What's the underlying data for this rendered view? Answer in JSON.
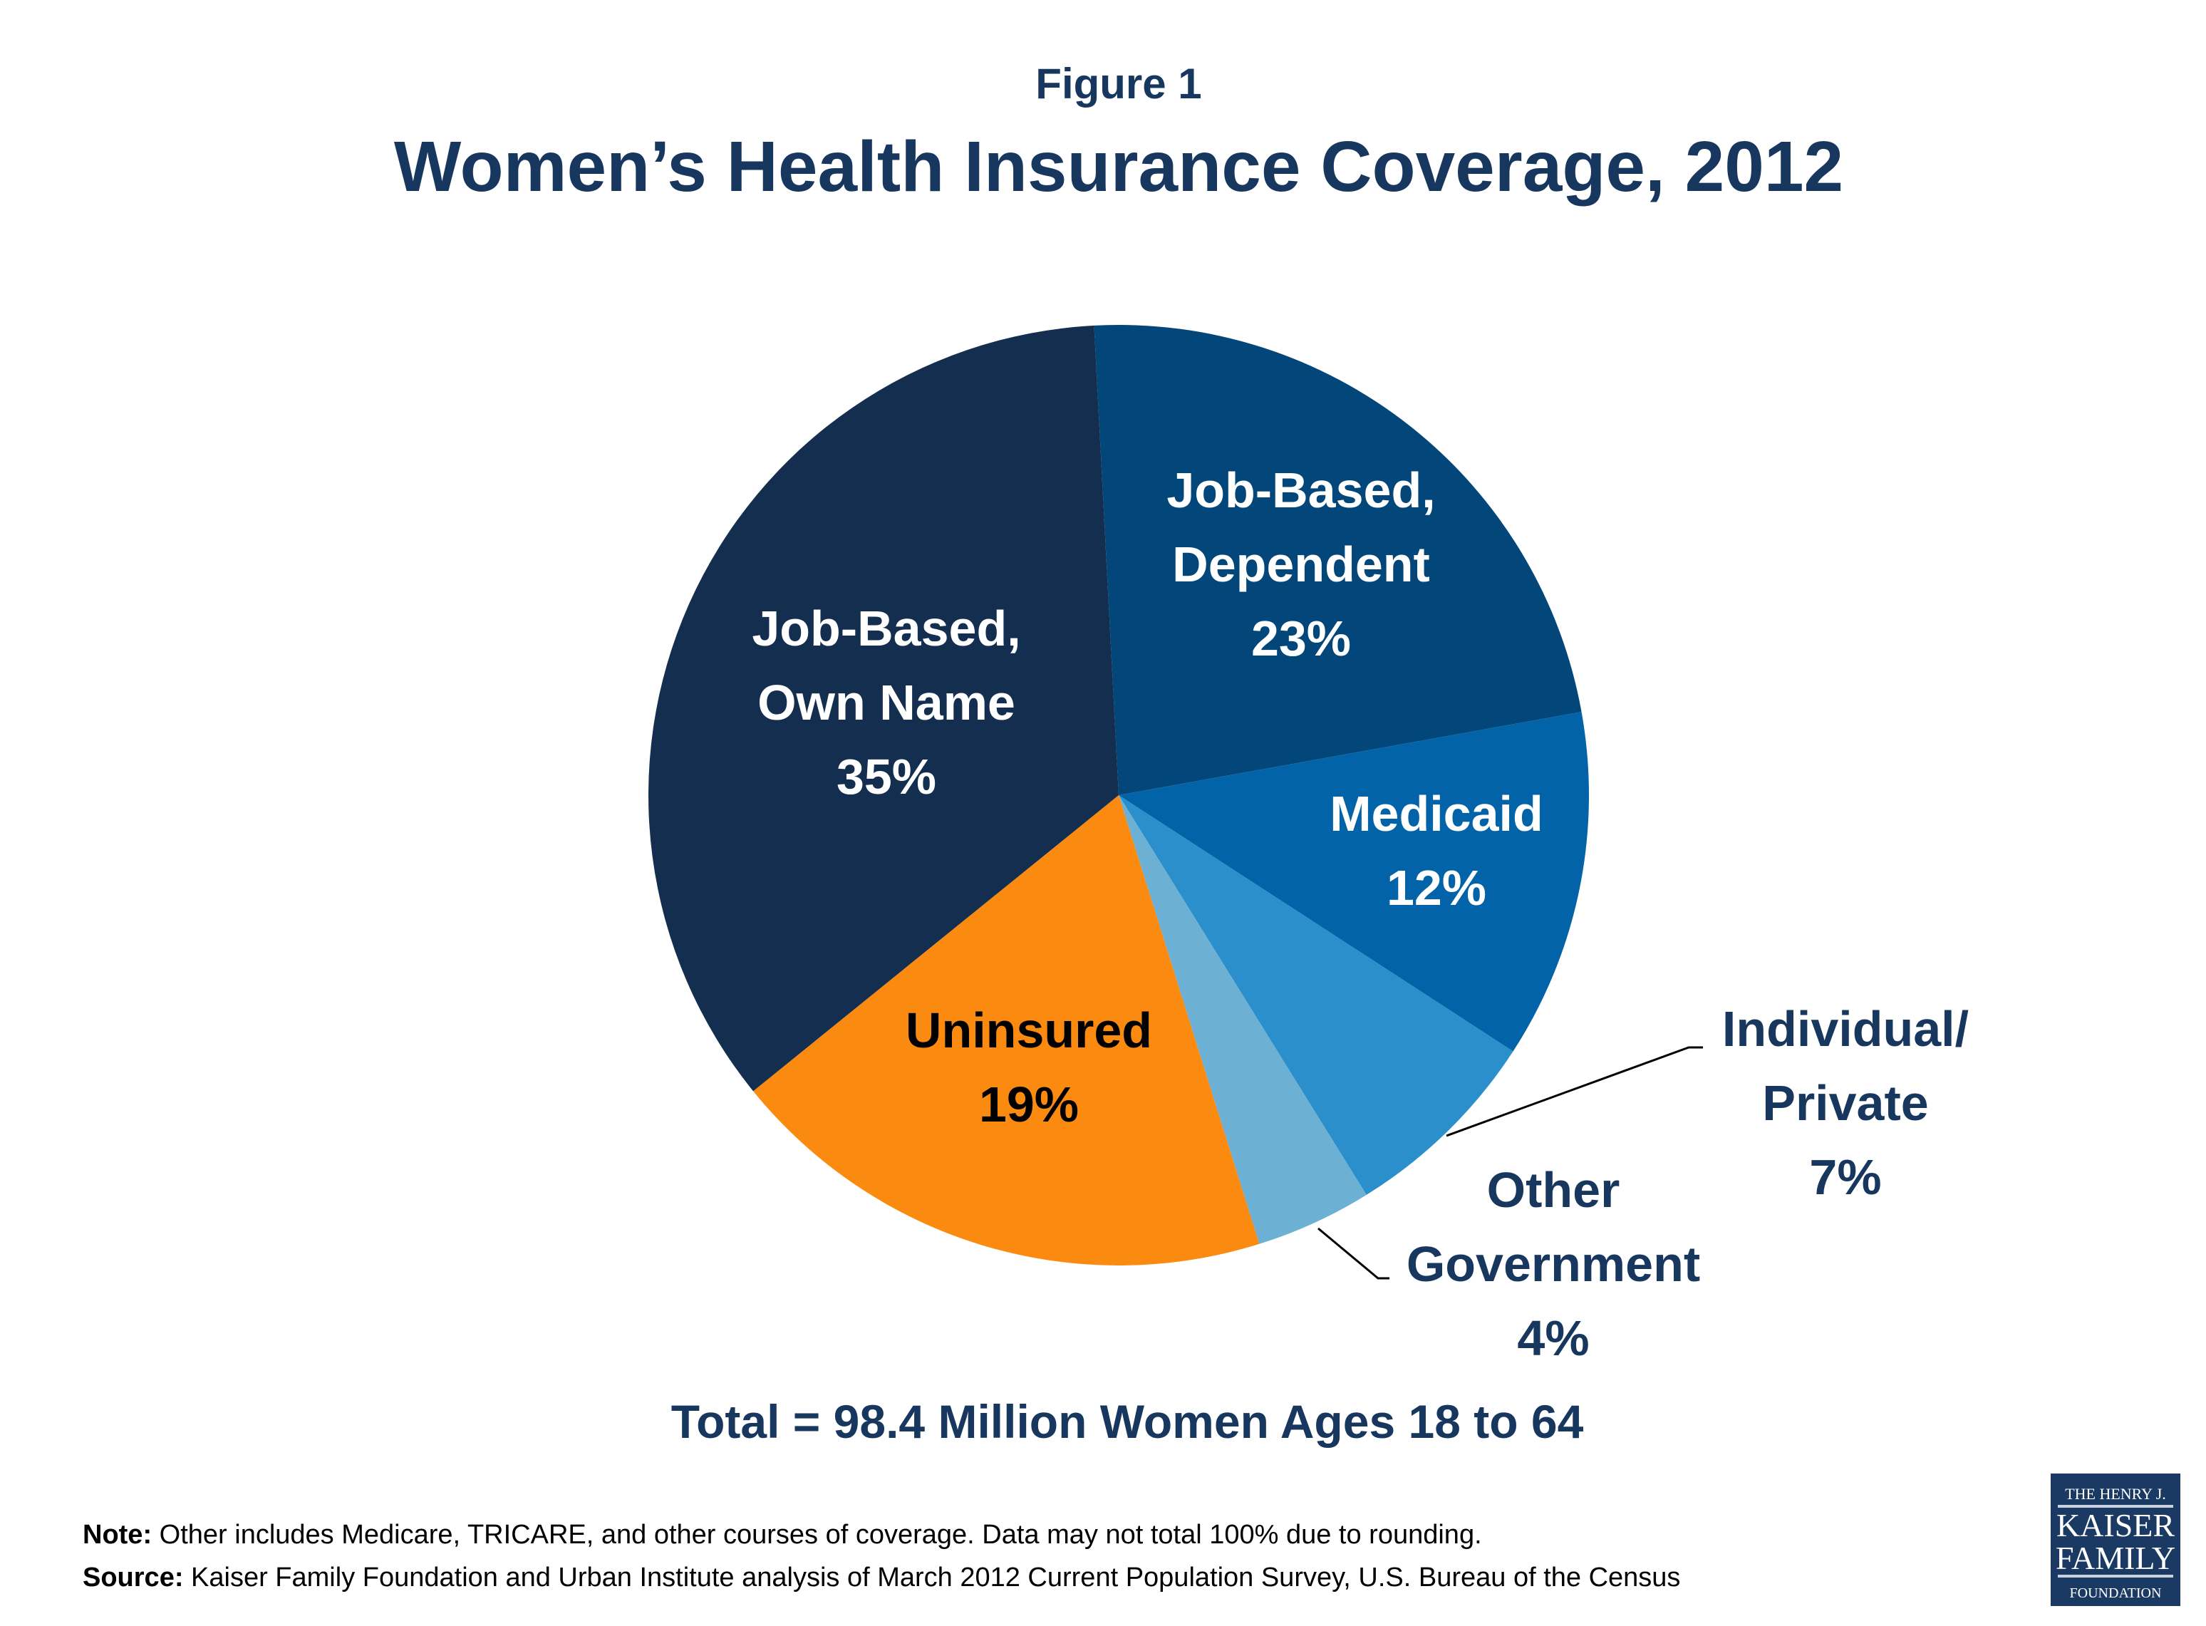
{
  "figure_label": "Figure 1",
  "chart_data": {
    "type": "pie",
    "title": "Women’s Health Insurance Coverage, 2012",
    "slices": [
      {
        "label_lines": [
          "Job-Based,",
          "Dependent"
        ],
        "value": 23,
        "value_label": "23%",
        "color": "#03467a",
        "label_color": "#ffffff"
      },
      {
        "label_lines": [
          "Medicaid"
        ],
        "value": 12,
        "value_label": "12%",
        "color": "#0263a8",
        "label_color": "#ffffff"
      },
      {
        "label_lines": [
          "Individual/",
          "Private"
        ],
        "value": 7,
        "value_label": "7%",
        "color": "#2a8fca",
        "label_color": "#17375e"
      },
      {
        "label_lines": [
          "Other",
          "Government"
        ],
        "value": 4,
        "value_label": "4%",
        "color": "#6cb0d4",
        "label_color": "#17375e"
      },
      {
        "label_lines": [
          "Uninsured"
        ],
        "value": 19,
        "value_label": "19%",
        "color": "#fb8a11",
        "label_color": "#000000"
      },
      {
        "label_lines": [
          "Job-Based,",
          "Own Name"
        ],
        "value": 35,
        "value_label": "35%",
        "color": "#132e4f",
        "label_color": "#ffffff"
      }
    ],
    "total_label": "Total = 98.4 Million Women Ages 18 to 64"
  },
  "note": {
    "label": "Note:",
    "text": " Other includes Medicare, TRICARE, and other courses of coverage. Data may not total 100% due to rounding."
  },
  "source": {
    "label": "Source:",
    "text": " Kaiser Family Foundation and Urban Institute analysis of March 2012 Current Population Survey, U.S. Bureau of the Census"
  },
  "logo": {
    "lines": [
      "THE HENRY J.",
      "KAISER",
      "FAMILY",
      "FOUNDATION"
    ],
    "color": "#1b3a63"
  }
}
